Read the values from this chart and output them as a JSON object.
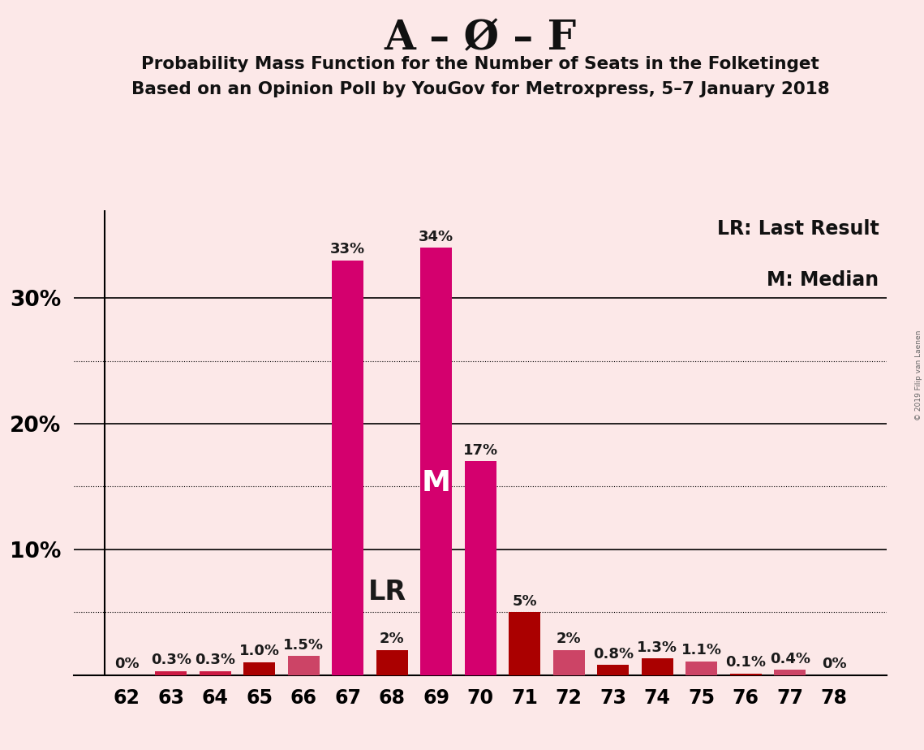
{
  "title_main": "A – Ø – F",
  "title_sub1": "Probability Mass Function for the Number of Seats in the Folketinget",
  "title_sub2": "Based on an Opinion Poll by YouGov for Metroxpress, 5–7 January 2018",
  "categories": [
    62,
    63,
    64,
    65,
    66,
    67,
    68,
    69,
    70,
    71,
    72,
    73,
    74,
    75,
    76,
    77,
    78
  ],
  "values": [
    0.0,
    0.3,
    0.3,
    1.0,
    1.5,
    33.0,
    2.0,
    34.0,
    17.0,
    5.0,
    2.0,
    0.8,
    1.3,
    1.1,
    0.1,
    0.4,
    0.0
  ],
  "labels": [
    "0%",
    "0.3%",
    "0.3%",
    "1.0%",
    "1.5%",
    "33%",
    "2%",
    "34%",
    "17%",
    "5%",
    "2%",
    "0.8%",
    "1.3%",
    "1.1%",
    "0.1%",
    "0.4%",
    "0%"
  ],
  "bar_colors": [
    "#cc1a44",
    "#cc1a44",
    "#cc1a44",
    "#aa0000",
    "#cc4466",
    "#d4006e",
    "#aa0000",
    "#d4006e",
    "#d4006e",
    "#aa0000",
    "#cc4466",
    "#aa0000",
    "#aa0000",
    "#cc4466",
    "#aa0000",
    "#cc4466",
    "#cc1a44"
  ],
  "background_color": "#fce8e8",
  "lr_index": 6,
  "median_index": 7,
  "lr_label": "LR",
  "median_label": "M",
  "legend_lr": "LR: Last Result",
  "legend_m": "M: Median",
  "watermark": "© 2019 Filip van Laenen",
  "ylim": [
    0,
    37
  ],
  "major_yticks": [
    10,
    20,
    30
  ],
  "dotted_yticks": [
    5,
    15,
    25
  ],
  "label_yticks": [
    10,
    20,
    30
  ],
  "label_yvals": [
    "10%",
    "20%",
    "30%"
  ]
}
